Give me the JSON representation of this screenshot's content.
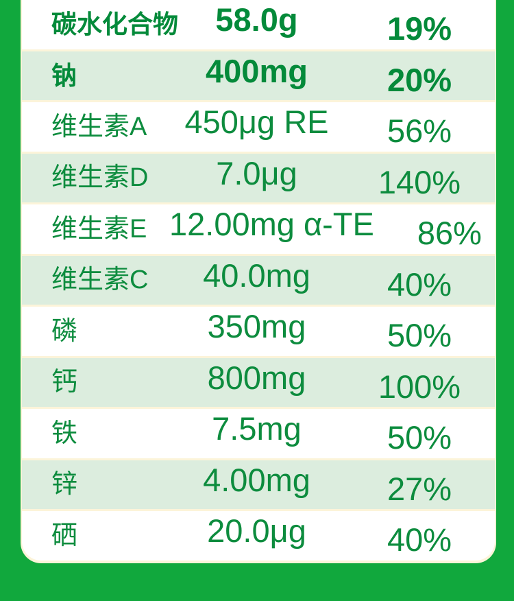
{
  "colors": {
    "background_green": "#11A83D",
    "card_border_cream": "#FCF4D9",
    "row_white": "#FFFFFF",
    "row_shaded_green": "#DCEDDE",
    "text_green": "#0D8C3E",
    "text_green_bold": "#048A3A"
  },
  "table": {
    "rows": [
      {
        "label": "碳水化合物",
        "amount": "58.0g",
        "nrv": "19%",
        "emphasis": true
      },
      {
        "label": "钠",
        "amount": "400mg",
        "nrv": "20%",
        "emphasis": true
      },
      {
        "label": "维生素A",
        "amount": "450μg RE",
        "nrv": "56%",
        "emphasis": false
      },
      {
        "label": "维生素D",
        "amount": "7.0μg",
        "nrv": "140%",
        "emphasis": false
      },
      {
        "label": "维生素E",
        "amount": "12.00mg α-TE",
        "nrv": "86%",
        "emphasis": false
      },
      {
        "label": "维生素C",
        "amount": "40.0mg",
        "nrv": "40%",
        "emphasis": false
      },
      {
        "label": "磷",
        "amount": "350mg",
        "nrv": "50%",
        "emphasis": false
      },
      {
        "label": "钙",
        "amount": "800mg",
        "nrv": "100%",
        "emphasis": false
      },
      {
        "label": "铁",
        "amount": "7.5mg",
        "nrv": "50%",
        "emphasis": false
      },
      {
        "label": "锌",
        "amount": "4.00mg",
        "nrv": "27%",
        "emphasis": false
      },
      {
        "label": "硒",
        "amount": "20.0μg",
        "nrv": "40%",
        "emphasis": false
      }
    ]
  }
}
